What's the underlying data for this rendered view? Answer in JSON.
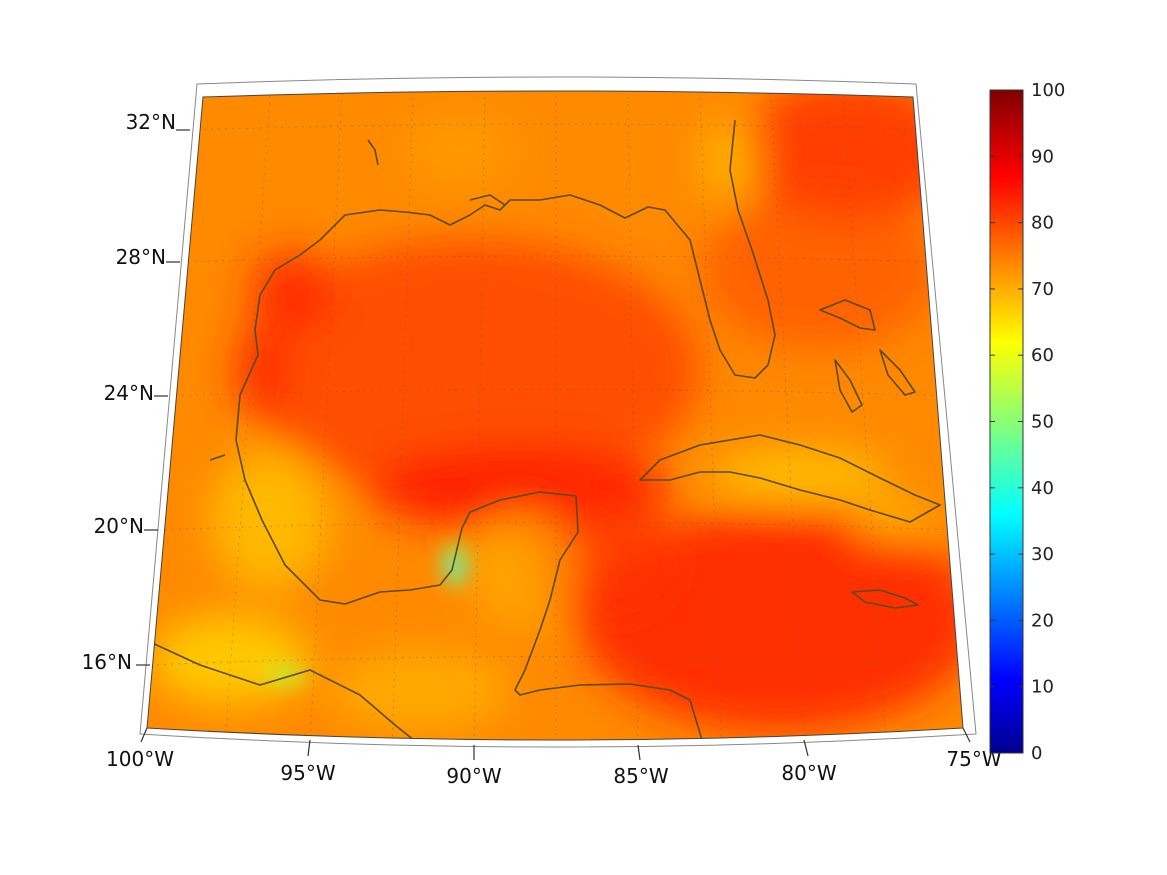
{
  "map": {
    "lon_labels": [
      {
        "lon": -100,
        "label": "100°W"
      },
      {
        "lon": -95,
        "label": "95°W"
      },
      {
        "lon": -90,
        "label": "90°W"
      },
      {
        "lon": -85,
        "label": "85°W"
      },
      {
        "lon": -80,
        "label": "80°W"
      },
      {
        "lon": -75,
        "label": "75°W"
      }
    ],
    "lat_labels": [
      {
        "lat": 16,
        "label": "16°N"
      },
      {
        "lat": 20,
        "label": "20°N"
      },
      {
        "lat": 24,
        "label": "24°N"
      },
      {
        "lat": 28,
        "label": "28°N"
      },
      {
        "lat": 32,
        "label": "32°N"
      }
    ],
    "extent": {
      "lon_min": -100,
      "lon_max": -75,
      "lat_min": 14,
      "lat_max": 33
    },
    "grid": true,
    "coastline_color": "#5a4a1e",
    "field_colors": {
      "low": "#00008f",
      "mid": "#ffe000",
      "high": "#ff2000"
    }
  },
  "colorbar": {
    "min": 0,
    "max": 100,
    "ticks": [
      "0",
      "10",
      "20",
      "30",
      "40",
      "50",
      "60",
      "70",
      "80",
      "90",
      "100"
    ],
    "colormap": "jet"
  }
}
